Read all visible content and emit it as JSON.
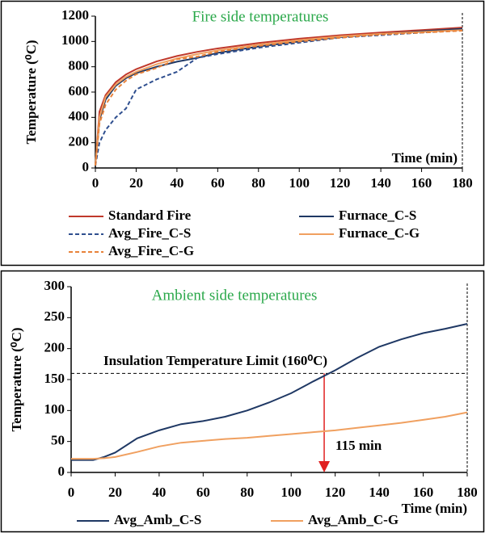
{
  "chart_data": [
    {
      "type": "line",
      "title": "Fire side temperatures",
      "y_label": "Temperature (⁰C)",
      "x_label": "Time (min)",
      "x": [
        0,
        2,
        5,
        10,
        15,
        20,
        30,
        40,
        50,
        60,
        80,
        100,
        120,
        140,
        160,
        180
      ],
      "xlim": [
        0,
        180
      ],
      "xticks": [
        0,
        20,
        40,
        60,
        80,
        100,
        120,
        140,
        160,
        180
      ],
      "ylim": [
        0,
        1200
      ],
      "yticks": [
        0,
        200,
        400,
        600,
        800,
        1000,
        1200
      ],
      "series": [
        {
          "name": "Standard Fire",
          "color": "#c0392b",
          "line_style": "solid",
          "values": [
            20,
            445,
            576,
            678,
            739,
            781,
            842,
            885,
            918,
            945,
            988,
            1022,
            1049,
            1071,
            1090,
            1110
          ]
        },
        {
          "name": "Furnace_C-S",
          "color": "#1f3864",
          "line_style": "solid",
          "values": [
            20,
            380,
            540,
            650,
            710,
            750,
            800,
            840,
            870,
            910,
            960,
            1000,
            1035,
            1060,
            1080,
            1100
          ]
        },
        {
          "name": "Avg_Fire_C-S",
          "color": "#2f4f8f",
          "line_style": "dashed",
          "values": [
            20,
            200,
            300,
            400,
            470,
            620,
            700,
            760,
            870,
            900,
            950,
            990,
            1030,
            1050,
            1070,
            1090
          ]
        },
        {
          "name": "Furnace_C-G",
          "color": "#f0a060",
          "line_style": "solid",
          "values": [
            20,
            400,
            560,
            660,
            720,
            760,
            820,
            865,
            900,
            930,
            975,
            1010,
            1040,
            1060,
            1075,
            1090
          ]
        },
        {
          "name": "Avg_Fire_C-G",
          "color": "#e8823a",
          "line_style": "dashed",
          "values": [
            20,
            350,
            500,
            620,
            690,
            740,
            790,
            860,
            880,
            920,
            965,
            1000,
            1030,
            1055,
            1070,
            1085
          ]
        }
      ]
    },
    {
      "type": "line",
      "title": "Ambient side temperatures",
      "y_label": "Temperature (⁰C)",
      "x_label": "Time (min)",
      "x": [
        0,
        10,
        15,
        20,
        30,
        40,
        50,
        60,
        70,
        80,
        90,
        100,
        110,
        120,
        130,
        140,
        150,
        160,
        170,
        180
      ],
      "xlim": [
        0,
        180
      ],
      "xticks": [
        0,
        20,
        40,
        60,
        80,
        100,
        120,
        140,
        160,
        180
      ],
      "ylim": [
        0,
        300
      ],
      "yticks": [
        0,
        50,
        100,
        150,
        200,
        250,
        300
      ],
      "limit": {
        "value": 160,
        "label": "Insulation Temperature Limit (160⁰C)"
      },
      "crossing": {
        "value": 115,
        "label": "115 min"
      },
      "series": [
        {
          "name": "Avg_Amb_C-S",
          "color": "#1f3864",
          "line_style": "solid",
          "values": [
            20,
            20,
            25,
            32,
            55,
            68,
            78,
            83,
            90,
            100,
            113,
            128,
            147,
            165,
            185,
            203,
            215,
            225,
            232,
            240
          ]
        },
        {
          "name": "Avg_Amb_C-G",
          "color": "#f0a060",
          "line_style": "solid",
          "values": [
            22,
            22,
            23,
            25,
            33,
            42,
            48,
            51,
            54,
            56,
            59,
            62,
            65,
            68,
            72,
            76,
            80,
            85,
            90,
            97
          ]
        }
      ]
    }
  ]
}
